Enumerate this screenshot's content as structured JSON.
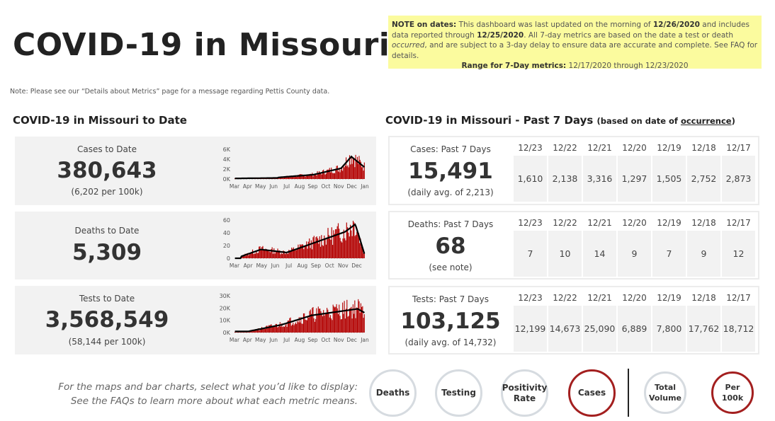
{
  "title": "COVID-19 in Missouri",
  "note": {
    "label": "NOTE on dates:",
    "text1": " This dashboard was last updated on the morning of ",
    "updated": "12/26/2020",
    "text2": " and includes data reported through ",
    "through": "12/25/2020",
    "text3": ". All 7-day metrics are based on the date a test or death ",
    "occurred": "occurred",
    "text4": ", and are subject to a 3-day delay to ensure data are accurate and complete. See FAQ for details.",
    "range_label": "Range for 7-Day metrics:",
    "range_value": " 12/17/2020 through 12/23/2020"
  },
  "pettis_note": "Note: Please see our “Details about Metrics” page for a message regarding Pettis County data.",
  "to_date": {
    "title": "COVID-19 in Missouri to Date",
    "cases": {
      "label": "Cases to Date",
      "value": "380,643",
      "sub": "(6,202 per 100k)",
      "yticks": [
        "6K",
        "4K",
        "2K",
        "0K"
      ]
    },
    "deaths": {
      "label": "Deaths to Date",
      "value": "5,309",
      "sub": "",
      "yticks": [
        "60",
        "40",
        "20",
        "0"
      ]
    },
    "tests": {
      "label": "Tests to Date",
      "value": "3,568,549",
      "sub": "(58,144 per 100k)",
      "yticks": [
        "30K",
        "20K",
        "10K",
        "0K"
      ]
    },
    "months_jan": [
      "Mar",
      "Apr",
      "May",
      "Jun",
      "Jul",
      "Aug",
      "Sep",
      "Oct",
      "Nov",
      "Dec",
      "Jan"
    ],
    "months_dec": [
      "Mar",
      "Apr",
      "May",
      "Jun",
      "Jul",
      "Aug",
      "Sep",
      "Oct",
      "Nov",
      "Dec"
    ]
  },
  "past7": {
    "title": "COVID-19 in Missouri - Past 7 Days",
    "subtitle_pre": "(based on date of ",
    "subtitle_link": "occurrence",
    "subtitle_post": ")",
    "dates": [
      "12/23",
      "12/22",
      "12/21",
      "12/20",
      "12/19",
      "12/18",
      "12/17"
    ],
    "cases": {
      "label": "Cases: Past 7 Days",
      "value": "15,491",
      "sub": "(daily avg. of 2,213)",
      "daily": [
        "1,610",
        "2,138",
        "3,316",
        "1,297",
        "1,505",
        "2,752",
        "2,873"
      ]
    },
    "deaths": {
      "label": "Deaths: Past 7 Days",
      "value": "68",
      "sub": "(see note)",
      "daily": [
        "7",
        "10",
        "14",
        "9",
        "7",
        "9",
        "12"
      ]
    },
    "tests": {
      "label": "Tests: Past 7 Days",
      "value": "103,125",
      "sub": "(daily avg. of 14,732)",
      "daily": [
        "12,199",
        "14,673",
        "25,090",
        "6,889",
        "7,800",
        "17,762",
        "18,712"
      ]
    }
  },
  "selector": {
    "line1": "For the maps and bar charts, select what you’d like to display:",
    "line2": "See the FAQs to learn more about what each metric means.",
    "metrics": [
      "Deaths",
      "Testing",
      "Positivity Rate",
      "Cases"
    ],
    "selected_metric": "Cases",
    "modes": [
      "Total Volume",
      "Per 100k"
    ],
    "selected_mode": "Per 100k"
  },
  "colors": {
    "bar": "#b30000",
    "line": "#000000",
    "selected_ring": "#a31f1f",
    "note_bg": "#fbfb9e"
  }
}
